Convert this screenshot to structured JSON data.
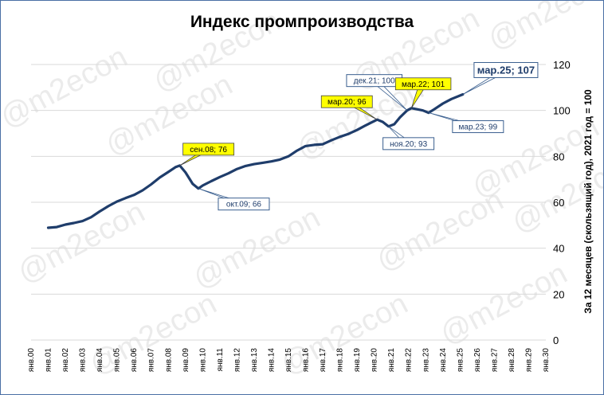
{
  "chart_data": {
    "type": "line",
    "title": "Индекс промпроизводства",
    "ylabel": "За 12 месяцев (скользящий год), 2021 год =  100",
    "ylim": [
      0,
      120
    ],
    "yticks": [
      0,
      20,
      40,
      60,
      80,
      100,
      120
    ],
    "grid": true,
    "axis_position": "right",
    "xlim": [
      2000,
      2030
    ],
    "xticks": [
      "янв.00",
      "янв.01",
      "янв.02",
      "янв.03",
      "янв.04",
      "янв.05",
      "янв.06",
      "янв.07",
      "янв.08",
      "янв.09",
      "янв.10",
      "янв.11",
      "янв.12",
      "янв.13",
      "янв.14",
      "янв.15",
      "янв.16",
      "янв.17",
      "янв.18",
      "янв.19",
      "янв.20",
      "янв.21",
      "янв.22",
      "янв.23",
      "янв.24",
      "янв.25",
      "янв.26",
      "янв.27",
      "янв.28",
      "янв.29",
      "янв.30"
    ],
    "series": [
      {
        "color": "#1f3d6b",
        "points": [
          [
            "2001-01",
            48.9
          ],
          [
            "2001-07",
            49.2
          ],
          [
            "2002-01",
            50.3
          ],
          [
            "2002-07",
            51.0
          ],
          [
            "2003-01",
            51.8
          ],
          [
            "2003-07",
            53.5
          ],
          [
            "2004-01",
            56.0
          ],
          [
            "2004-07",
            58.3
          ],
          [
            "2005-01",
            60.3
          ],
          [
            "2005-07",
            61.8
          ],
          [
            "2006-01",
            63.2
          ],
          [
            "2006-07",
            65.2
          ],
          [
            "2007-01",
            67.8
          ],
          [
            "2007-07",
            70.8
          ],
          [
            "2008-01",
            73.2
          ],
          [
            "2008-06",
            75.3
          ],
          [
            "2008-09",
            76.0
          ],
          [
            "2009-01",
            73.0
          ],
          [
            "2009-06",
            68.0
          ],
          [
            "2009-10",
            66.0
          ],
          [
            "2010-01",
            67.3
          ],
          [
            "2010-07",
            69.2
          ],
          [
            "2011-01",
            71.0
          ],
          [
            "2011-07",
            72.6
          ],
          [
            "2012-01",
            74.5
          ],
          [
            "2012-07",
            75.8
          ],
          [
            "2013-01",
            76.6
          ],
          [
            "2013-07",
            77.2
          ],
          [
            "2014-01",
            77.8
          ],
          [
            "2014-07",
            78.6
          ],
          [
            "2015-01",
            80.0
          ],
          [
            "2015-07",
            82.5
          ],
          [
            "2016-01",
            84.5
          ],
          [
            "2016-07",
            85.0
          ],
          [
            "2017-01",
            85.3
          ],
          [
            "2017-07",
            87.0
          ],
          [
            "2018-01",
            88.5
          ],
          [
            "2018-07",
            89.8
          ],
          [
            "2019-01",
            91.5
          ],
          [
            "2019-07",
            93.5
          ],
          [
            "2020-03",
            96.0
          ],
          [
            "2020-07",
            95.0
          ],
          [
            "2020-11",
            93.0
          ],
          [
            "2021-03",
            94.0
          ],
          [
            "2021-07",
            97.0
          ],
          [
            "2021-12",
            100.0
          ],
          [
            "2022-03",
            101.0
          ],
          [
            "2022-07",
            100.5
          ],
          [
            "2022-11",
            100.0
          ],
          [
            "2023-03",
            99.0
          ],
          [
            "2023-07",
            100.5
          ],
          [
            "2024-01",
            103.0
          ],
          [
            "2024-07",
            105.0
          ],
          [
            "2025-03",
            107.0
          ]
        ]
      }
    ],
    "annotations": [
      {
        "label": "сен.08; 76",
        "x": "2008-09",
        "y": 76,
        "style": "highlight"
      },
      {
        "label": "окт.09; 66",
        "x": "2009-10",
        "y": 66,
        "style": "outline"
      },
      {
        "label": "мар.20; 96",
        "x": "2020-03",
        "y": 96,
        "style": "highlight"
      },
      {
        "label": "ноя.20; 93",
        "x": "2020-11",
        "y": 93,
        "style": "outline"
      },
      {
        "label": "дек.21; 100",
        "x": "2021-12",
        "y": 100,
        "style": "outline"
      },
      {
        "label": "мар.22; 101",
        "x": "2022-03",
        "y": 101,
        "style": "highlight"
      },
      {
        "label": "мар.23; 99",
        "x": "2023-03",
        "y": 99,
        "style": "outline"
      },
      {
        "label": "мар.25; 107",
        "x": "2025-03",
        "y": 107,
        "style": "outline-large"
      }
    ],
    "watermark": "@m2econ"
  },
  "colors": {
    "line": "#1f3d6b",
    "highlight_fill": "#ffff00",
    "outline_stroke": "#3a5f8f",
    "grid": "#d9d9d9",
    "frame": "#4a6fa5"
  }
}
